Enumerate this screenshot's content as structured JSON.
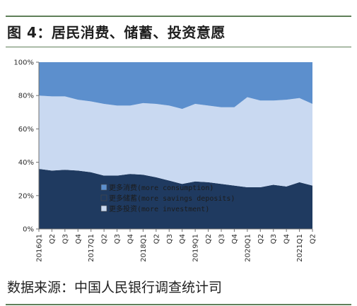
{
  "figure": {
    "title": "图 4：居民消费、储蓄、投资意愿",
    "source": "数据来源：中国人民银行调查统计司"
  },
  "colors": {
    "consumption": "#5c8fcd",
    "savings": "#1f3a60",
    "investment": "#c9d9f1",
    "rule": "#5f7f59",
    "axis": "#707070"
  },
  "chart_data": {
    "type": "area",
    "stacking": "percent",
    "x": [
      "2016Q1",
      "Q2",
      "Q3",
      "Q4",
      "2017Q1",
      "Q2",
      "Q3",
      "Q4",
      "2018Q1",
      "Q2",
      "Q3",
      "Q4",
      "2019Q1",
      "Q2",
      "Q3",
      "Q4",
      "2020Q1",
      "Q2",
      "Q3",
      "Q4",
      "2021Q1",
      "Q2"
    ],
    "y_ticks": [
      "0%",
      "20%",
      "40%",
      "60%",
      "80%",
      "100%"
    ],
    "ylim": [
      0,
      100
    ],
    "series": [
      {
        "name": "更多储蓄(more savings deposits)",
        "color_key": "savings",
        "values": [
          36,
          35,
          35.5,
          35,
          34,
          32,
          32,
          33,
          32.5,
          31,
          29,
          27,
          28.5,
          28,
          27,
          26,
          25,
          25,
          26.5,
          25.5,
          28,
          26
        ]
      },
      {
        "name": "更多投资(more investment)",
        "color_key": "investment",
        "values": [
          44,
          44.5,
          44,
          42.5,
          42.5,
          43,
          42,
          41,
          43,
          44,
          45,
          45,
          46.5,
          46,
          46,
          47,
          54,
          52,
          50.5,
          52,
          50.5,
          49
        ]
      },
      {
        "name": "更多消费(more consumption)",
        "color_key": "consumption",
        "values": [
          20,
          20.5,
          20.5,
          22.5,
          23.5,
          25,
          26,
          26,
          24.5,
          25,
          26,
          28,
          25,
          26,
          27,
          27,
          21,
          23,
          23,
          22.5,
          21.5,
          25
        ]
      }
    ],
    "legend": {
      "position": "bottom-center-inside",
      "entries": [
        {
          "label": "更多消费(more consumption)",
          "color_key": "consumption"
        },
        {
          "label": "更多储蓄(more savings deposits)",
          "color_key": "savings"
        },
        {
          "label": "更多投资(more investment)",
          "color_key": "investment"
        }
      ]
    }
  }
}
